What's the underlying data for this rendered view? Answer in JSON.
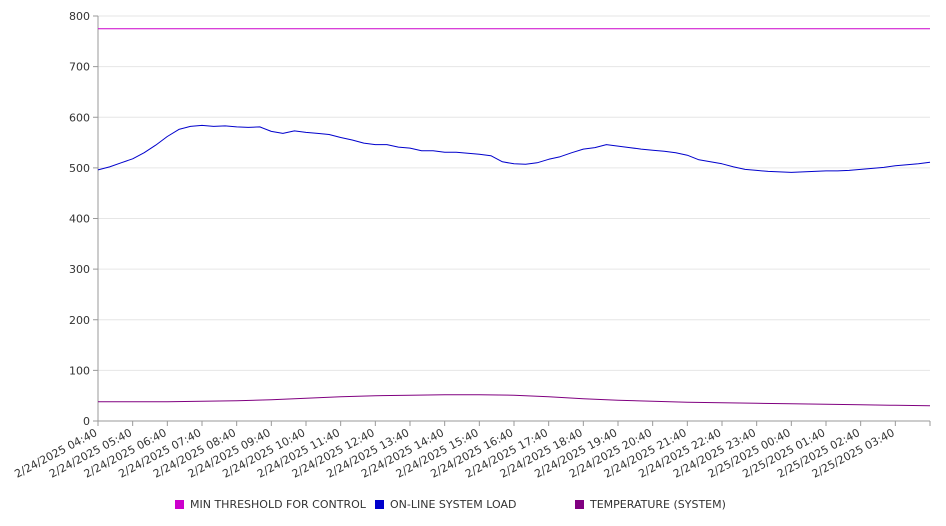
{
  "chart_data": {
    "type": "line",
    "title": "",
    "xlabel": "",
    "ylabel": "",
    "ylim": [
      0,
      800
    ],
    "yticks": [
      0,
      100,
      200,
      300,
      400,
      500,
      600,
      700,
      800
    ],
    "grid": "horizontal",
    "legend_position": "bottom",
    "x_tick_labels": [
      "2/24/2025 04:40",
      "2/24/2025 05:40",
      "2/24/2025 06:40",
      "2/24/2025 07:40",
      "2/24/2025 08:40",
      "2/24/2025 09:40",
      "2/24/2025 10:40",
      "2/24/2025 11:40",
      "2/24/2025 12:40",
      "2/24/2025 13:40",
      "2/24/2025 14:40",
      "2/24/2025 15:40",
      "2/24/2025 16:40",
      "2/24/2025 17:40",
      "2/24/2025 18:40",
      "2/24/2025 19:40",
      "2/24/2025 20:40",
      "2/24/2025 21:40",
      "2/24/2025 22:40",
      "2/24/2025 23:40",
      "2/25/2025 00:40",
      "2/25/2025 01:40",
      "2/25/2025 02:40",
      "2/25/2025 03:40"
    ],
    "x_end": "2/25/2025 04:40",
    "series": [
      {
        "name": "MIN THRESHOLD FOR CONTROL",
        "color": "#cc00cc",
        "points": [
          [
            "2/24/2025 04:40",
            775
          ],
          [
            "2/25/2025 04:40",
            775
          ]
        ]
      },
      {
        "name": "ON-LINE SYSTEM LOAD",
        "color": "#0000cc",
        "points": [
          [
            "2/24/2025 04:40",
            496
          ],
          [
            "2/24/2025 05:00",
            502
          ],
          [
            "2/24/2025 05:20",
            510
          ],
          [
            "2/24/2025 05:40",
            518
          ],
          [
            "2/24/2025 06:00",
            530
          ],
          [
            "2/24/2025 06:20",
            545
          ],
          [
            "2/24/2025 06:40",
            562
          ],
          [
            "2/24/2025 07:00",
            576
          ],
          [
            "2/24/2025 07:20",
            582
          ],
          [
            "2/24/2025 07:40",
            584
          ],
          [
            "2/24/2025 08:00",
            582
          ],
          [
            "2/24/2025 08:20",
            583
          ],
          [
            "2/24/2025 08:40",
            581
          ],
          [
            "2/24/2025 09:00",
            580
          ],
          [
            "2/24/2025 09:20",
            581
          ],
          [
            "2/24/2025 09:40",
            572
          ],
          [
            "2/24/2025 10:00",
            568
          ],
          [
            "2/24/2025 10:20",
            573
          ],
          [
            "2/24/2025 10:40",
            570
          ],
          [
            "2/24/2025 11:00",
            568
          ],
          [
            "2/24/2025 11:20",
            566
          ],
          [
            "2/24/2025 11:40",
            560
          ],
          [
            "2/24/2025 12:00",
            555
          ],
          [
            "2/24/2025 12:20",
            549
          ],
          [
            "2/24/2025 12:40",
            546
          ],
          [
            "2/24/2025 13:00",
            546
          ],
          [
            "2/24/2025 13:20",
            541
          ],
          [
            "2/24/2025 13:40",
            539
          ],
          [
            "2/24/2025 14:00",
            534
          ],
          [
            "2/24/2025 14:20",
            534
          ],
          [
            "2/24/2025 14:40",
            531
          ],
          [
            "2/24/2025 15:00",
            531
          ],
          [
            "2/24/2025 15:20",
            529
          ],
          [
            "2/24/2025 15:40",
            527
          ],
          [
            "2/24/2025 16:00",
            524
          ],
          [
            "2/24/2025 16:20",
            512
          ],
          [
            "2/24/2025 16:40",
            508
          ],
          [
            "2/24/2025 17:00",
            507
          ],
          [
            "2/24/2025 17:20",
            510
          ],
          [
            "2/24/2025 17:40",
            517
          ],
          [
            "2/24/2025 18:00",
            522
          ],
          [
            "2/24/2025 18:20",
            530
          ],
          [
            "2/24/2025 18:40",
            537
          ],
          [
            "2/24/2025 19:00",
            540
          ],
          [
            "2/24/2025 19:20",
            546
          ],
          [
            "2/24/2025 19:40",
            543
          ],
          [
            "2/24/2025 20:00",
            540
          ],
          [
            "2/24/2025 20:20",
            537
          ],
          [
            "2/24/2025 20:40",
            535
          ],
          [
            "2/24/2025 21:00",
            533
          ],
          [
            "2/24/2025 21:20",
            530
          ],
          [
            "2/24/2025 21:40",
            525
          ],
          [
            "2/24/2025 22:00",
            516
          ],
          [
            "2/24/2025 22:20",
            512
          ],
          [
            "2/24/2025 22:40",
            508
          ],
          [
            "2/24/2025 23:00",
            502
          ],
          [
            "2/24/2025 23:20",
            497
          ],
          [
            "2/24/2025 23:40",
            495
          ],
          [
            "2/25/2025 00:00",
            493
          ],
          [
            "2/25/2025 00:20",
            492
          ],
          [
            "2/25/2025 00:40",
            491
          ],
          [
            "2/25/2025 01:00",
            492
          ],
          [
            "2/25/2025 01:20",
            493
          ],
          [
            "2/25/2025 01:40",
            494
          ],
          [
            "2/25/2025 02:00",
            494
          ],
          [
            "2/25/2025 02:20",
            495
          ],
          [
            "2/25/2025 02:40",
            497
          ],
          [
            "2/25/2025 03:00",
            499
          ],
          [
            "2/25/2025 03:20",
            501
          ],
          [
            "2/25/2025 03:40",
            504
          ],
          [
            "2/25/2025 04:00",
            506
          ],
          [
            "2/25/2025 04:20",
            508
          ],
          [
            "2/25/2025 04:40",
            511
          ]
        ]
      },
      {
        "name": "TEMPERATURE (SYSTEM)",
        "color": "#800080",
        "points": [
          [
            "2/24/2025 04:40",
            38
          ],
          [
            "2/24/2025 05:40",
            38
          ],
          [
            "2/24/2025 06:40",
            38
          ],
          [
            "2/24/2025 07:40",
            39
          ],
          [
            "2/24/2025 08:40",
            40
          ],
          [
            "2/24/2025 09:40",
            42
          ],
          [
            "2/24/2025 10:40",
            45
          ],
          [
            "2/24/2025 11:40",
            48
          ],
          [
            "2/24/2025 12:40",
            50
          ],
          [
            "2/24/2025 13:40",
            51
          ],
          [
            "2/24/2025 14:40",
            52
          ],
          [
            "2/24/2025 15:40",
            52
          ],
          [
            "2/24/2025 16:40",
            51
          ],
          [
            "2/24/2025 17:40",
            48
          ],
          [
            "2/24/2025 18:40",
            44
          ],
          [
            "2/24/2025 19:40",
            41
          ],
          [
            "2/24/2025 20:40",
            39
          ],
          [
            "2/24/2025 21:40",
            37
          ],
          [
            "2/24/2025 22:40",
            36
          ],
          [
            "2/24/2025 23:40",
            35
          ],
          [
            "2/25/2025 00:40",
            34
          ],
          [
            "2/25/2025 01:40",
            33
          ],
          [
            "2/25/2025 02:40",
            32
          ],
          [
            "2/25/2025 03:40",
            31
          ],
          [
            "2/25/2025 04:40",
            30
          ]
        ]
      }
    ]
  }
}
